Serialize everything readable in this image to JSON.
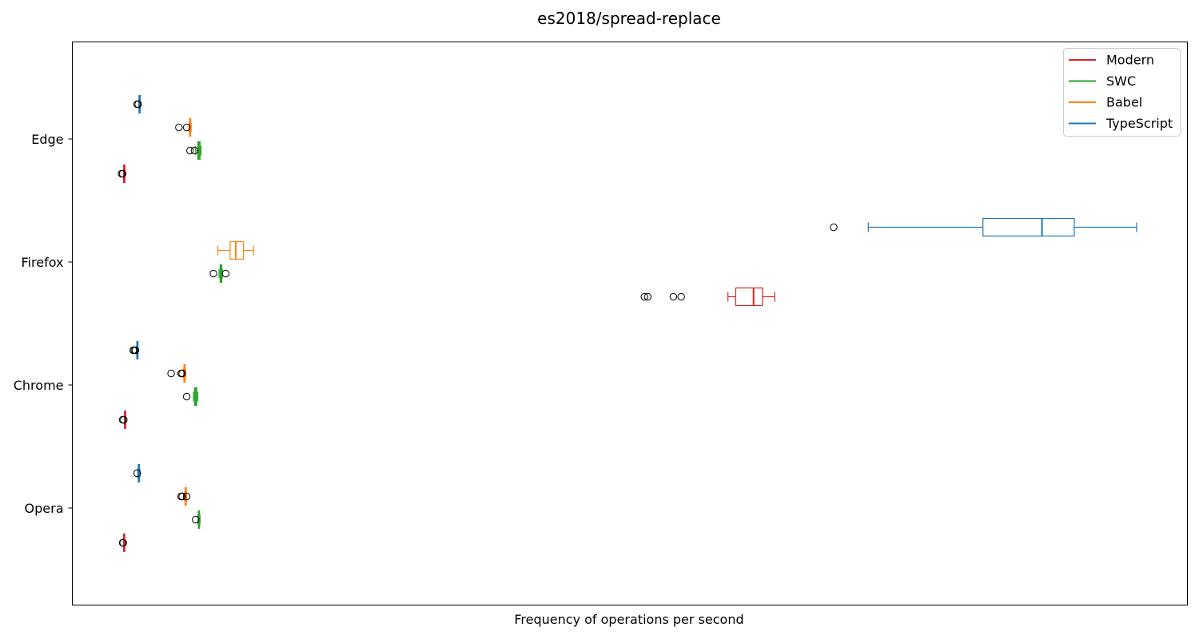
{
  "chart_data": {
    "type": "boxplot",
    "orientation": "horizontal",
    "title": "es2018/spread-replace",
    "xlabel": "Frequency of operations per second",
    "ylabel": "",
    "x_tick_labels_shown": false,
    "grid": false,
    "legend_position": "top-right",
    "xlim": [
      0,
      100
    ],
    "categories": [
      "Edge",
      "Firefox",
      "Chrome",
      "Opera"
    ],
    "series": [
      {
        "name": "Modern",
        "color": "#d62728",
        "boxes": [
          {
            "category": "Edge",
            "whislo": 4.65,
            "q1": 4.65,
            "med": 4.66,
            "q3": 4.67,
            "whishi": 4.68,
            "fliers": [
              4.45,
              4.55
            ]
          },
          {
            "category": "Firefox",
            "whislo": 58.9,
            "q1": 59.6,
            "med": 61.2,
            "q3": 62.0,
            "whishi": 63.1,
            "fliers": [
              51.4,
              51.7,
              54.0,
              54.7
            ]
          },
          {
            "category": "Chrome",
            "whislo": 4.7,
            "q1": 4.72,
            "med": 4.74,
            "q3": 4.76,
            "whishi": 4.78,
            "fliers": [
              4.55,
              4.65
            ]
          },
          {
            "category": "Opera",
            "whislo": 4.62,
            "q1": 4.64,
            "med": 4.66,
            "q3": 4.68,
            "whishi": 4.7,
            "fliers": [
              4.55,
              4.6
            ]
          }
        ]
      },
      {
        "name": "SWC",
        "color": "#2ca02c",
        "boxes": [
          {
            "category": "Edge",
            "whislo": 11.1,
            "q1": 11.3,
            "med": 11.4,
            "q3": 11.5,
            "whishi": 11.6,
            "fliers": [
              10.6,
              11.0
            ]
          },
          {
            "category": "Firefox",
            "whislo": 13.2,
            "q1": 13.3,
            "med": 13.4,
            "q3": 13.45,
            "whishi": 13.5,
            "fliers": [
              12.7,
              13.8
            ]
          },
          {
            "category": "Chrome",
            "whislo": 10.9,
            "q1": 11.0,
            "med": 11.1,
            "q3": 11.2,
            "whishi": 11.3,
            "fliers": [
              10.3
            ]
          },
          {
            "category": "Opera",
            "whislo": 11.3,
            "q1": 11.35,
            "med": 11.4,
            "q3": 11.45,
            "whishi": 11.5,
            "fliers": [
              11.1
            ]
          }
        ]
      },
      {
        "name": "Babel",
        "color": "#ff7f0e",
        "boxes": [
          {
            "category": "Edge",
            "whislo": 10.5,
            "q1": 10.55,
            "med": 10.6,
            "q3": 10.65,
            "whishi": 10.7,
            "fliers": [
              9.6,
              10.3
            ]
          },
          {
            "category": "Firefox",
            "whislo": 13.1,
            "q1": 14.2,
            "med": 14.7,
            "q3": 15.4,
            "whishi": 16.3,
            "fliers": []
          },
          {
            "category": "Chrome",
            "whislo": 10.0,
            "q1": 10.05,
            "med": 10.1,
            "q3": 10.15,
            "whishi": 10.2,
            "fliers": [
              8.9,
              9.8,
              9.9
            ]
          },
          {
            "category": "Opera",
            "whislo": 10.1,
            "q1": 10.15,
            "med": 10.2,
            "q3": 10.25,
            "whishi": 10.3,
            "fliers": [
              9.8,
              9.9,
              10.3
            ]
          }
        ]
      },
      {
        "name": "TypeScript",
        "color": "#1f77b4",
        "boxes": [
          {
            "category": "Edge",
            "whislo": 6.0,
            "q1": 6.02,
            "med": 6.05,
            "q3": 6.07,
            "whishi": 6.1,
            "fliers": [
              5.85,
              5.95
            ]
          },
          {
            "category": "Firefox",
            "whislo": 71.5,
            "q1": 81.8,
            "med": 87.1,
            "q3": 90.0,
            "whishi": 95.6,
            "fliers": [
              68.4
            ]
          },
          {
            "category": "Chrome",
            "whislo": 5.8,
            "q1": 5.82,
            "med": 5.85,
            "q3": 5.87,
            "whishi": 5.9,
            "fliers": [
              5.5,
              5.6,
              5.7
            ]
          },
          {
            "category": "Opera",
            "whislo": 5.9,
            "q1": 5.95,
            "med": 6.0,
            "q3": 6.05,
            "whishi": 6.1,
            "fliers": [
              5.85
            ]
          }
        ]
      }
    ]
  }
}
